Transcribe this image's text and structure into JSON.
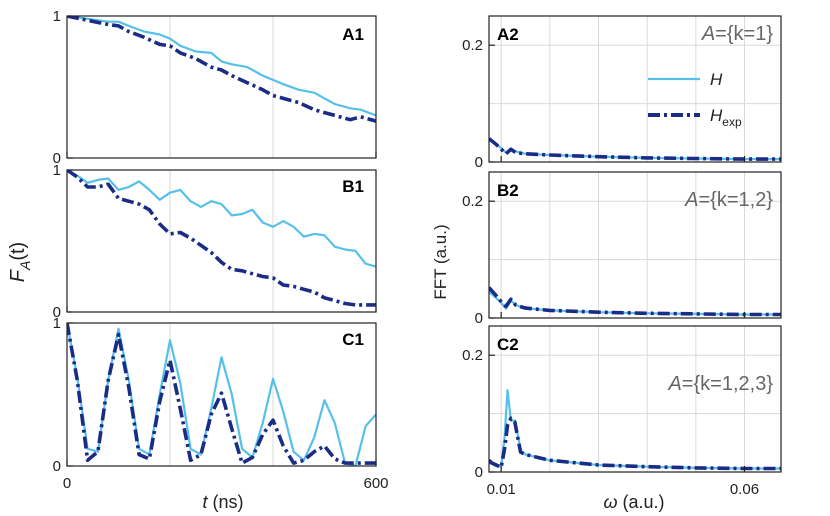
{
  "figure": {
    "left_ylabel": "F",
    "left_ylabel_sub": "A",
    "left_ylabel_arg": "(t)",
    "left_xlabel_var": "t",
    "left_xlabel_unit": " (ns)",
    "right_ylabel": "FFT (a.u.)",
    "right_xlabel_var": "ω",
    "right_xlabel_unit": " (a.u.)",
    "legend": {
      "H": "H",
      "Hexp_main": "H",
      "Hexp_sub": "exp"
    }
  },
  "colors": {
    "H": "#56c0ea",
    "Hexp": "#1b2c86",
    "grid": "#d9d9d9",
    "axis": "#222222",
    "panel_label": "#000000",
    "annotation": "#666666"
  },
  "chart_data": [
    {
      "type": "line",
      "panel": "A1",
      "xlim": [
        0,
        600
      ],
      "ylim": [
        0,
        1
      ],
      "xticks": [
        0,
        600
      ],
      "yticks": [
        0,
        1
      ],
      "grid_x": [
        200,
        400
      ],
      "series": [
        {
          "name": "H",
          "style": "solid",
          "x": [
            0,
            40,
            80,
            100,
            120,
            150,
            180,
            200,
            220,
            250,
            280,
            300,
            320,
            350,
            380,
            400,
            420,
            450,
            480,
            500,
            520,
            550,
            570,
            600
          ],
          "y": [
            1.0,
            0.98,
            0.96,
            0.96,
            0.93,
            0.89,
            0.87,
            0.84,
            0.79,
            0.75,
            0.74,
            0.68,
            0.66,
            0.64,
            0.58,
            0.55,
            0.52,
            0.48,
            0.46,
            0.42,
            0.38,
            0.35,
            0.34,
            0.3
          ]
        },
        {
          "name": "Hexp",
          "style": "dashdot",
          "x": [
            0,
            40,
            80,
            100,
            120,
            150,
            180,
            200,
            220,
            250,
            280,
            300,
            320,
            350,
            380,
            400,
            420,
            450,
            480,
            500,
            520,
            550,
            570,
            600
          ],
          "y": [
            1.0,
            0.97,
            0.94,
            0.93,
            0.89,
            0.85,
            0.8,
            0.79,
            0.74,
            0.7,
            0.64,
            0.62,
            0.58,
            0.53,
            0.48,
            0.44,
            0.42,
            0.39,
            0.34,
            0.32,
            0.3,
            0.27,
            0.29,
            0.26
          ]
        }
      ]
    },
    {
      "type": "line",
      "panel": "B1",
      "xlim": [
        0,
        600
      ],
      "ylim": [
        0,
        1
      ],
      "xticks": [
        0,
        600
      ],
      "yticks": [
        0,
        1
      ],
      "grid_x": [
        200,
        400
      ],
      "series": [
        {
          "name": "H",
          "style": "solid",
          "x": [
            0,
            20,
            40,
            60,
            80,
            100,
            120,
            140,
            160,
            180,
            200,
            220,
            240,
            260,
            280,
            300,
            320,
            340,
            360,
            380,
            400,
            420,
            440,
            460,
            480,
            500,
            520,
            540,
            560,
            580,
            600
          ],
          "y": [
            1.0,
            0.96,
            0.91,
            0.93,
            0.94,
            0.86,
            0.88,
            0.92,
            0.86,
            0.79,
            0.84,
            0.86,
            0.78,
            0.74,
            0.78,
            0.76,
            0.68,
            0.69,
            0.72,
            0.63,
            0.6,
            0.64,
            0.6,
            0.53,
            0.55,
            0.54,
            0.46,
            0.44,
            0.43,
            0.34,
            0.32
          ]
        },
        {
          "name": "Hexp",
          "style": "dashdot",
          "x": [
            0,
            20,
            40,
            60,
            80,
            100,
            120,
            140,
            160,
            180,
            200,
            220,
            240,
            260,
            280,
            300,
            320,
            340,
            360,
            380,
            400,
            420,
            440,
            460,
            480,
            500,
            520,
            540,
            560,
            580,
            600
          ],
          "y": [
            1.0,
            0.95,
            0.88,
            0.88,
            0.9,
            0.8,
            0.78,
            0.76,
            0.72,
            0.62,
            0.55,
            0.56,
            0.52,
            0.47,
            0.42,
            0.35,
            0.3,
            0.29,
            0.27,
            0.25,
            0.24,
            0.19,
            0.18,
            0.16,
            0.14,
            0.1,
            0.08,
            0.06,
            0.05,
            0.05,
            0.05
          ]
        }
      ]
    },
    {
      "type": "line",
      "panel": "C1",
      "xlim": [
        0,
        600
      ],
      "ylim": [
        0,
        1
      ],
      "xticks": [
        0,
        600
      ],
      "yticks": [
        0,
        1
      ],
      "grid_x": [
        200,
        400
      ],
      "series": [
        {
          "name": "H",
          "style": "solid",
          "x": [
            0,
            20,
            40,
            60,
            80,
            100,
            120,
            140,
            160,
            180,
            200,
            220,
            240,
            260,
            280,
            300,
            320,
            340,
            360,
            380,
            400,
            420,
            440,
            460,
            480,
            500,
            520,
            540,
            560,
            580,
            600
          ],
          "y": [
            1.0,
            0.62,
            0.12,
            0.1,
            0.6,
            0.96,
            0.6,
            0.12,
            0.08,
            0.5,
            0.88,
            0.58,
            0.12,
            0.08,
            0.4,
            0.76,
            0.5,
            0.12,
            0.06,
            0.3,
            0.61,
            0.38,
            0.1,
            0.04,
            0.2,
            0.46,
            0.3,
            0.02,
            0.0,
            0.28,
            0.36
          ]
        },
        {
          "name": "Hexp",
          "style": "dashdot",
          "x": [
            0,
            20,
            40,
            60,
            80,
            100,
            120,
            140,
            160,
            180,
            200,
            220,
            240,
            260,
            280,
            300,
            320,
            340,
            360,
            380,
            400,
            420,
            440,
            460,
            480,
            500,
            520,
            540,
            560,
            580,
            600
          ],
          "y": [
            1.0,
            0.6,
            0.04,
            0.1,
            0.6,
            0.92,
            0.55,
            0.08,
            0.05,
            0.45,
            0.74,
            0.4,
            0.04,
            0.08,
            0.36,
            0.51,
            0.26,
            0.02,
            0.06,
            0.22,
            0.32,
            0.14,
            0.02,
            0.04,
            0.1,
            0.14,
            0.05,
            0.02,
            0.02,
            0.02,
            0.02
          ]
        }
      ]
    },
    {
      "type": "line",
      "panel": "A2",
      "annotation_var": "A",
      "annotation_rest": "={k=1}",
      "xlim": [
        0.0075,
        0.0675
      ],
      "ylim": [
        0,
        0.25
      ],
      "xticks": [
        0.01,
        0.06
      ],
      "yticks": [
        0,
        0.2
      ],
      "grid_x": [
        0.01,
        0.02,
        0.03,
        0.04,
        0.05,
        0.06
      ],
      "series": [
        {
          "name": "H",
          "style": "solid",
          "x": [
            0.0075,
            0.009,
            0.01,
            0.011,
            0.012,
            0.013,
            0.015,
            0.02,
            0.03,
            0.04,
            0.05,
            0.06,
            0.0675
          ],
          "y": [
            0.038,
            0.03,
            0.024,
            0.016,
            0.02,
            0.018,
            0.014,
            0.012,
            0.009,
            0.007,
            0.006,
            0.005,
            0.005
          ]
        },
        {
          "name": "Hexp",
          "style": "dashdot",
          "x": [
            0.0075,
            0.009,
            0.01,
            0.011,
            0.012,
            0.013,
            0.015,
            0.02,
            0.03,
            0.04,
            0.05,
            0.06,
            0.0675
          ],
          "y": [
            0.04,
            0.03,
            0.022,
            0.014,
            0.022,
            0.016,
            0.014,
            0.012,
            0.009,
            0.007,
            0.006,
            0.005,
            0.005
          ]
        }
      ]
    },
    {
      "type": "line",
      "panel": "B2",
      "annotation_var": "A",
      "annotation_rest": "={k=1,2}",
      "xlim": [
        0.0075,
        0.0675
      ],
      "ylim": [
        0,
        0.25
      ],
      "xticks": [
        0.01,
        0.06
      ],
      "yticks": [
        0,
        0.2
      ],
      "grid_x": [
        0.01,
        0.02,
        0.03,
        0.04,
        0.05,
        0.06
      ],
      "series": [
        {
          "name": "H",
          "style": "solid",
          "x": [
            0.0075,
            0.009,
            0.01,
            0.011,
            0.012,
            0.013,
            0.015,
            0.02,
            0.03,
            0.04,
            0.05,
            0.06,
            0.0675
          ],
          "y": [
            0.045,
            0.034,
            0.026,
            0.016,
            0.03,
            0.022,
            0.017,
            0.013,
            0.01,
            0.008,
            0.007,
            0.006,
            0.006
          ]
        },
        {
          "name": "Hexp",
          "style": "dashdot",
          "x": [
            0.0075,
            0.009,
            0.01,
            0.011,
            0.012,
            0.013,
            0.015,
            0.02,
            0.03,
            0.04,
            0.05,
            0.06,
            0.0675
          ],
          "y": [
            0.052,
            0.038,
            0.028,
            0.02,
            0.032,
            0.022,
            0.017,
            0.013,
            0.01,
            0.008,
            0.007,
            0.006,
            0.006
          ]
        }
      ]
    },
    {
      "type": "line",
      "panel": "C2",
      "annotation_var": "A",
      "annotation_rest": "={k=1,2,3}",
      "xlim": [
        0.0075,
        0.0675
      ],
      "ylim": [
        0,
        0.25
      ],
      "xticks": [
        0.01,
        0.06
      ],
      "yticks": [
        0,
        0.2
      ],
      "grid_x": [
        0.01,
        0.02,
        0.03,
        0.04,
        0.05,
        0.06
      ],
      "series": [
        {
          "name": "H",
          "style": "solid",
          "x": [
            0.0075,
            0.008,
            0.009,
            0.01,
            0.0107,
            0.0113,
            0.012,
            0.0128,
            0.0135,
            0.014,
            0.015,
            0.02,
            0.03,
            0.04,
            0.05,
            0.06,
            0.0675
          ],
          "y": [
            0.016,
            0.014,
            0.01,
            0.01,
            0.06,
            0.14,
            0.088,
            0.088,
            0.06,
            0.036,
            0.03,
            0.02,
            0.012,
            0.009,
            0.007,
            0.006,
            0.006
          ]
        },
        {
          "name": "Hexp",
          "style": "dashdot",
          "x": [
            0.0075,
            0.008,
            0.009,
            0.01,
            0.0107,
            0.0113,
            0.012,
            0.0128,
            0.0135,
            0.014,
            0.015,
            0.02,
            0.03,
            0.04,
            0.05,
            0.06,
            0.0675
          ],
          "y": [
            0.02,
            0.016,
            0.012,
            0.008,
            0.04,
            0.08,
            0.092,
            0.086,
            0.055,
            0.034,
            0.03,
            0.02,
            0.012,
            0.009,
            0.007,
            0.006,
            0.006
          ]
        }
      ]
    }
  ]
}
